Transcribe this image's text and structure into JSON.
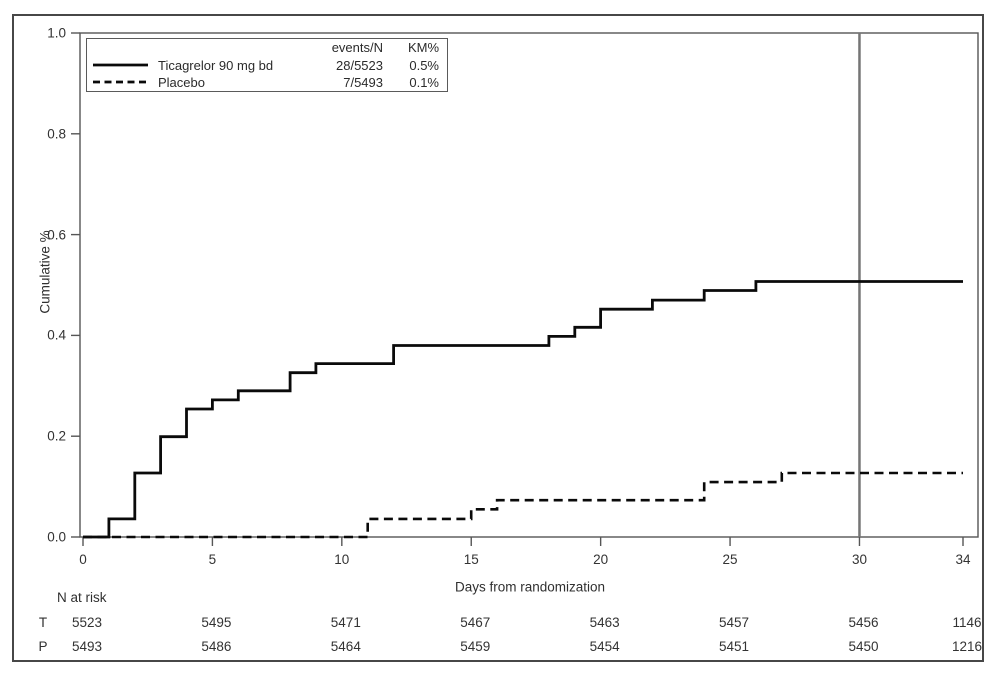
{
  "figure": {
    "type": "kaplan-meier-cumulative-incidence-plot",
    "background": "#ffffff"
  },
  "legend": {
    "columns": [
      "events/N",
      "KM%"
    ],
    "entries": [
      {
        "label": "Ticagrelor 90 mg bd",
        "events_n": "28/5523",
        "km_pct": "0.5%",
        "line_style": "solid"
      },
      {
        "label": "Placebo",
        "events_n": "7/5493",
        "km_pct": "0.1%",
        "line_style": "dashed"
      }
    ]
  },
  "chart_data": {
    "type": "line",
    "subtype": "step",
    "title": "",
    "xlabel": "Days from randomization",
    "ylabel": "Cumulative %",
    "xlim": [
      0,
      34
    ],
    "ylim": [
      0.0,
      1.0
    ],
    "grid": false,
    "x_ticks": [
      {
        "v": 0,
        "label": "0"
      },
      {
        "v": 5,
        "label": "5"
      },
      {
        "v": 10,
        "label": "10"
      },
      {
        "v": 15,
        "label": "15"
      },
      {
        "v": 20,
        "label": "20"
      },
      {
        "v": 25,
        "label": "25"
      },
      {
        "v": 30,
        "label": "30"
      },
      {
        "v": 34,
        "label": "34"
      }
    ],
    "y_ticks": [
      {
        "v": 0.0,
        "label": "0.0"
      },
      {
        "v": 0.2,
        "label": "0.2"
      },
      {
        "v": 0.4,
        "label": "0.4"
      },
      {
        "v": 0.6,
        "label": "0.6"
      },
      {
        "v": 0.8,
        "label": "0.8"
      },
      {
        "v": 1.0,
        "label": "1.0"
      }
    ],
    "reference_line_x": 30,
    "series": [
      {
        "name": "Ticagrelor 90 mg bd",
        "style": "solid",
        "events_n": "28/5523",
        "km_pct": "0.5%",
        "points": [
          [
            0,
            0.0
          ],
          [
            1,
            0.036
          ],
          [
            2,
            0.127
          ],
          [
            3,
            0.199
          ],
          [
            4,
            0.254
          ],
          [
            5,
            0.272
          ],
          [
            6,
            0.29
          ],
          [
            8,
            0.326
          ],
          [
            9,
            0.344
          ],
          [
            12,
            0.38
          ],
          [
            18,
            0.398
          ],
          [
            19,
            0.416
          ],
          [
            20,
            0.452
          ],
          [
            22,
            0.47
          ],
          [
            24,
            0.489
          ],
          [
            26,
            0.507
          ],
          [
            34,
            0.507
          ]
        ]
      },
      {
        "name": "Placebo",
        "style": "dashed",
        "events_n": "7/5493",
        "km_pct": "0.1%",
        "points": [
          [
            0,
            0.0
          ],
          [
            11,
            0.036
          ],
          [
            15,
            0.055
          ],
          [
            16,
            0.073
          ],
          [
            24,
            0.109
          ],
          [
            27,
            0.127
          ],
          [
            34,
            0.127
          ]
        ]
      }
    ],
    "n_at_risk": {
      "label": "N at risk",
      "x_positions": [
        0,
        5,
        10,
        15,
        20,
        25,
        30,
        34
      ],
      "rows": [
        {
          "key": "T",
          "values": [
            "5523",
            "5495",
            "5471",
            "5467",
            "5463",
            "5457",
            "5456",
            "1146"
          ]
        },
        {
          "key": "P",
          "values": [
            "5493",
            "5486",
            "5464",
            "5459",
            "5454",
            "5451",
            "5450",
            "1216"
          ]
        }
      ]
    }
  },
  "colors": {
    "series_line": "#0a0a0a",
    "reference_line": "#757575",
    "frame": "#565656",
    "tick": "#565656",
    "text": "#2b2b2b",
    "outer_border": "#474747"
  }
}
